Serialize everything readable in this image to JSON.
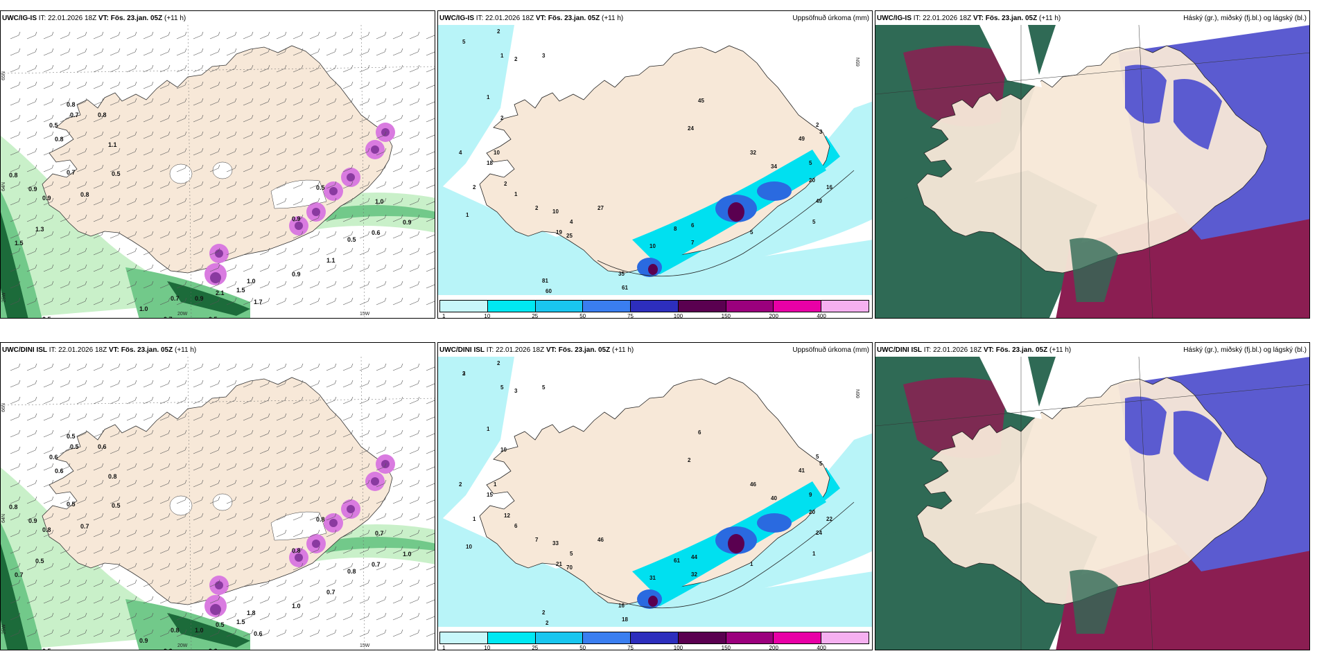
{
  "panels": [
    {
      "model": "UWC/IG-IS",
      "it_label": "IT:",
      "it_value": "22.01.2026 18Z",
      "vt_label": "VT:",
      "vt_value": "Fös. 23.jan. 05Z",
      "lead": "(+11 h)",
      "right_title": "",
      "kind": "wind",
      "axis": {
        "lat": "65N",
        "lat2": "64N",
        "lon": "20W",
        "lon2": "15W",
        "lon3": "25W"
      },
      "labels": [
        "0.8",
        "0.8",
        "0.8",
        "0.7",
        "1.1",
        "0.8",
        "0.9",
        "0.9",
        "0.7",
        "0.5",
        "0.8",
        "1.3",
        "1.5",
        "2.5",
        "1.0",
        "0.7",
        "0.5",
        "0.7",
        "0.9",
        "1.0",
        "0.9",
        "1.7",
        "1.1",
        "0.5",
        "0.9",
        "0.6",
        "0.9",
        "0.5",
        "1.0",
        "2.1",
        "1.5",
        "0.5"
      ]
    },
    {
      "model": "UWC/IG-IS",
      "it_label": "IT:",
      "it_value": "22.01.2026 18Z",
      "vt_label": "VT:",
      "vt_value": "Fös. 23.jan. 05Z",
      "lead": "(+11 h)",
      "right_title": "Uppsöfnuð úrkoma (mm)",
      "kind": "precip",
      "axis": {
        "lat": "65N",
        "lon": "",
        "lon2": ""
      },
      "labels": [
        "5",
        "2",
        "1",
        "3",
        "2",
        "1",
        "2",
        "4",
        "10",
        "2",
        "1",
        "18",
        "2",
        "1",
        "2",
        "4",
        "10",
        "19",
        "25",
        "27",
        "8",
        "10",
        "7",
        "6",
        "35",
        "61",
        "81",
        "60",
        "45",
        "24",
        "2",
        "3",
        "5",
        "20",
        "16",
        "49",
        "32",
        "34",
        "49",
        "5",
        "5"
      ],
      "colorbar": {
        "colors": [
          "#c8f7fa",
          "#00e8f2",
          "#19c6ef",
          "#3a7ef0",
          "#2d2ebd",
          "#5a0050",
          "#9b007d",
          "#e800a6",
          "#f5b0f0"
        ],
        "ticks": [
          "1",
          "10",
          "25",
          "50",
          "75",
          "100",
          "150",
          "200",
          "400"
        ]
      }
    },
    {
      "model": "UWC/IG-IS",
      "it_label": "IT:",
      "it_value": "22.01.2026 18Z",
      "vt_label": "VT:",
      "vt_value": "Fös. 23.jan. 05Z",
      "lead": "(+11 h)",
      "right_title": "Háský (gr.), miðský (fj.bl.) og lágský (bl.)",
      "kind": "cloud"
    },
    {
      "model": "UWC/DINI ISL",
      "it_label": "IT:",
      "it_value": "22.01.2026 18Z",
      "vt_label": "VT:",
      "vt_value": "Fös. 23.jan. 05Z",
      "lead": "(+11 h)",
      "right_title": "",
      "kind": "wind",
      "axis": {
        "lat": "66N",
        "lat2": "64N",
        "lon": "20W",
        "lon2": "15W",
        "lon3": "25W"
      },
      "labels": [
        "0.5",
        "0.6",
        "0.6",
        "0.5",
        "0.8",
        "0.8",
        "0.9",
        "0.8",
        "0.5",
        "0.5",
        "0.7",
        "0.5",
        "0.7",
        "0.5",
        "0.9",
        "0.6",
        "0.6",
        "0.8",
        "1.0",
        "1.8",
        "1.0",
        "0.6",
        "0.7",
        "0.8",
        "0.8",
        "0.7",
        "1.0",
        "0.8",
        "0.7",
        "0.5",
        "1.5",
        "0.6"
      ]
    },
    {
      "model": "UWC/DINI ISL",
      "it_label": "IT:",
      "it_value": "22.01.2026 18Z",
      "vt_label": "VT:",
      "vt_value": "Fös. 23.jan. 05Z",
      "lead": "(+11 h)",
      "right_title": "Uppsöfnuð úrkoma (mm)",
      "kind": "precip",
      "axis": {
        "lat": "66N",
        "lon": "",
        "lon2": ""
      },
      "labels": [
        "3",
        "2",
        "5",
        "5",
        "3",
        "1",
        "10",
        "2",
        "1",
        "1",
        "10",
        "15",
        "12",
        "6",
        "7",
        "5",
        "33",
        "21",
        "70",
        "46",
        "61",
        "31",
        "32",
        "44",
        "16",
        "18",
        "2",
        "2",
        "6",
        "2",
        "5",
        "5",
        "9",
        "20",
        "22",
        "24",
        "46",
        "40",
        "41",
        "1",
        "1",
        "2"
      ],
      "colorbar": {
        "colors": [
          "#c8f7fa",
          "#00e8f2",
          "#19c6ef",
          "#3a7ef0",
          "#2d2ebd",
          "#5a0050",
          "#9b007d",
          "#e800a6",
          "#f5b0f0"
        ],
        "ticks": [
          "1",
          "10",
          "25",
          "50",
          "75",
          "100",
          "150",
          "200",
          "400"
        ]
      }
    },
    {
      "model": "UWC/DINI ISL",
      "it_label": "IT:",
      "it_value": "22.01.2026 18Z",
      "vt_label": "VT:",
      "vt_value": "Fös. 23.jan. 05Z",
      "lead": "(+11 h)",
      "right_title": "Háský (gr.), miðský (fj.bl.) og lágský (bl.)",
      "kind": "cloud"
    }
  ],
  "colors": {
    "land": "#f7e8d8",
    "wind_light": "#c9f0c9",
    "wind_mid": "#72c98a",
    "wind_dark": "#1c6b3a",
    "gust_pink": "#d97be0",
    "gust_purple": "#8a3aa0",
    "precip_light": "#b8f4f8",
    "precip_cyan": "#00e0f0",
    "precip_blue": "#2a6ae0",
    "precip_dark": "#5a0050",
    "cloud_high": "#2f6a55",
    "cloud_mid": "#8b1e52",
    "cloud_low": "#5b5bd0"
  }
}
